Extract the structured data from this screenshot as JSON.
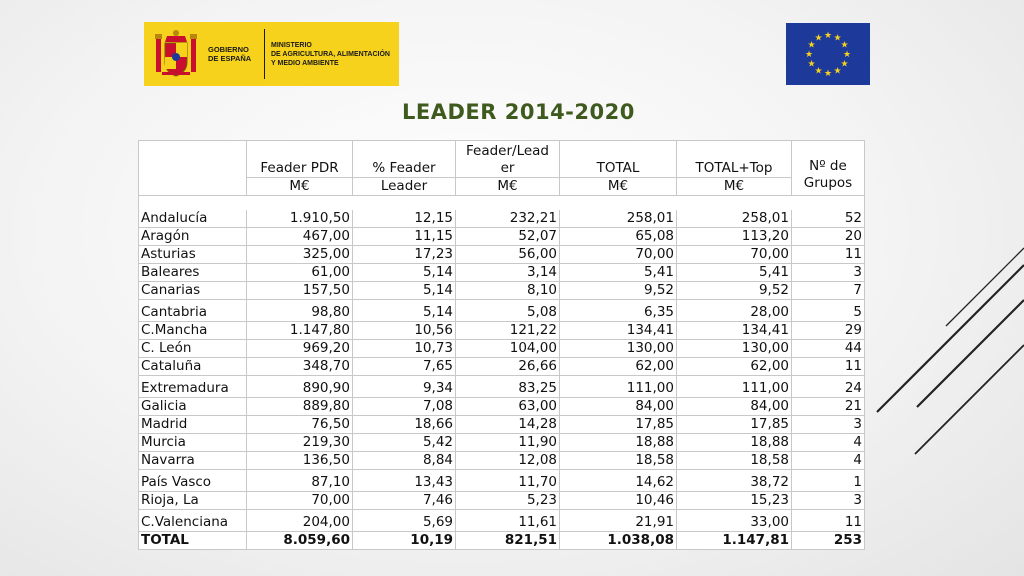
{
  "header": {
    "gov_line1": "GOBIERNO\nDE ESPAÑA",
    "gov_line2": "MINISTERIO\nDE AGRICULTURA, ALIMENTACIÓN\nY MEDIO AMBIENTE",
    "title": "LEADER 2014-2020"
  },
  "colors": {
    "logo_bg": "#f6d21c",
    "eu_blue": "#1d3a9a",
    "eu_star": "#f6d21c",
    "title": "#3f5a1e"
  },
  "table": {
    "columns": [
      {
        "top": "",
        "bottom": ""
      },
      {
        "top": "Feader PDR",
        "bottom": "M€"
      },
      {
        "top": "% Feader",
        "bottom": "Leader"
      },
      {
        "top": "Feader/Lead\ner",
        "bottom": "M€"
      },
      {
        "top": "TOTAL",
        "bottom": "M€"
      },
      {
        "top": "TOTAL+Top",
        "bottom": "M€"
      },
      {
        "top": "Nº de\nGrupos",
        "bottom": ""
      }
    ],
    "rows": [
      {
        "region": "Andalucía",
        "feader_pdr": "1.910,50",
        "pct_feader_leader": "12,15",
        "feader_leader": "232,21",
        "total": "258,01",
        "total_top": "258,01",
        "grupos": "52"
      },
      {
        "region": "Aragón",
        "feader_pdr": "467,00",
        "pct_feader_leader": "11,15",
        "feader_leader": "52,07",
        "total": "65,08",
        "total_top": "113,20",
        "grupos": "20"
      },
      {
        "region": "Asturias",
        "feader_pdr": "325,00",
        "pct_feader_leader": "17,23",
        "feader_leader": "56,00",
        "total": "70,00",
        "total_top": "70,00",
        "grupos": "11"
      },
      {
        "region": "Baleares",
        "feader_pdr": "61,00",
        "pct_feader_leader": "5,14",
        "feader_leader": "3,14",
        "total": "5,41",
        "total_top": "5,41",
        "grupos": "3"
      },
      {
        "region": "Canarias",
        "feader_pdr": "157,50",
        "pct_feader_leader": "5,14",
        "feader_leader": "8,10",
        "total": "9,52",
        "total_top": "9,52",
        "grupos": "7"
      },
      {
        "region": "Cantabria",
        "feader_pdr": "98,80",
        "pct_feader_leader": "5,14",
        "feader_leader": "5,08",
        "total": "6,35",
        "total_top": "28,00",
        "grupos": "5",
        "gap": true
      },
      {
        "region": "C.Mancha",
        "feader_pdr": "1.147,80",
        "pct_feader_leader": "10,56",
        "feader_leader": "121,22",
        "total": "134,41",
        "total_top": "134,41",
        "grupos": "29"
      },
      {
        "region": "C. León",
        "feader_pdr": "969,20",
        "pct_feader_leader": "10,73",
        "feader_leader": "104,00",
        "total": "130,00",
        "total_top": "130,00",
        "grupos": "44"
      },
      {
        "region": "Cataluña",
        "feader_pdr": "348,70",
        "pct_feader_leader": "7,65",
        "feader_leader": "26,66",
        "total": "62,00",
        "total_top": "62,00",
        "grupos": "11"
      },
      {
        "region": "Extremadura",
        "feader_pdr": "890,90",
        "pct_feader_leader": "9,34",
        "feader_leader": "83,25",
        "total": "111,00",
        "total_top": "111,00",
        "grupos": "24",
        "gap": true
      },
      {
        "region": "Galicia",
        "feader_pdr": "889,80",
        "pct_feader_leader": "7,08",
        "feader_leader": "63,00",
        "total": "84,00",
        "total_top": "84,00",
        "grupos": "21"
      },
      {
        "region": "Madrid",
        "feader_pdr": "76,50",
        "pct_feader_leader": "18,66",
        "feader_leader": "14,28",
        "total": "17,85",
        "total_top": "17,85",
        "grupos": "3"
      },
      {
        "region": "Murcia",
        "feader_pdr": "219,30",
        "pct_feader_leader": "5,42",
        "feader_leader": "11,90",
        "total": "18,88",
        "total_top": "18,88",
        "grupos": "4"
      },
      {
        "region": "Navarra",
        "feader_pdr": "136,50",
        "pct_feader_leader": "8,84",
        "feader_leader": "12,08",
        "total": "18,58",
        "total_top": "18,58",
        "grupos": "4"
      },
      {
        "region": "País Vasco",
        "feader_pdr": "87,10",
        "pct_feader_leader": "13,43",
        "feader_leader": "11,70",
        "total": "14,62",
        "total_top": "38,72",
        "grupos": "1",
        "gap": true
      },
      {
        "region": "Rioja, La",
        "feader_pdr": "70,00",
        "pct_feader_leader": "7,46",
        "feader_leader": "5,23",
        "total": "10,46",
        "total_top": "15,23",
        "grupos": "3"
      },
      {
        "region": "C.Valenciana",
        "feader_pdr": "204,00",
        "pct_feader_leader": "5,69",
        "feader_leader": "11,61",
        "total": "21,91",
        "total_top": "33,00",
        "grupos": "11",
        "gap": true
      }
    ],
    "total_row": {
      "region": "TOTAL",
      "feader_pdr": "8.059,60",
      "pct_feader_leader": "10,19",
      "feader_leader": "821,51",
      "total": "1.038,08",
      "total_top": "1.147,81",
      "grupos": "253"
    }
  }
}
